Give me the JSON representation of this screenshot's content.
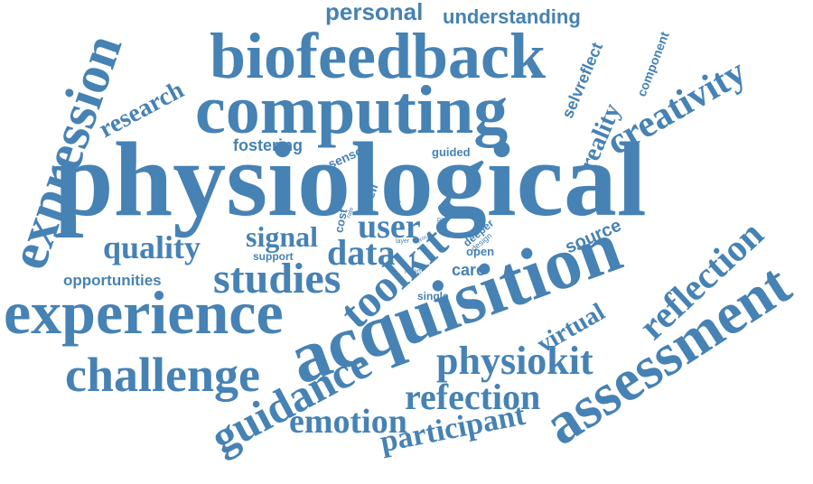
{
  "colors": {
    "background": "#ffffff",
    "word": "#4682b4"
  },
  "words": {
    "physiological": "physiological",
    "biofeedback": "biofeedback",
    "computing": "computing",
    "expression": "expression",
    "experience": "experience",
    "acquisition": "acquisition",
    "assessment": "assessment",
    "challenge": "challenge",
    "guidance": "guidance",
    "toolkit": "toolkit",
    "studies": "studies",
    "creativity": "creativity",
    "reflection": "reflection",
    "physiokit": "physiokit",
    "refection": "refection",
    "emotion": "emotion",
    "participant": "participant",
    "quality": "quality",
    "signal": "signal",
    "data": "data",
    "user": "user",
    "personal": "personal",
    "understanding": "understanding",
    "research": "research",
    "fostering": "fostering",
    "selvreflect": "selvreflect",
    "component": "component",
    "reality": "reality",
    "virtual": "virtual",
    "source": "source",
    "opportunities": "opportunities",
    "sensor": "sensor",
    "guided": "guided",
    "self": "self",
    "cost": "cost",
    "rate": "rate",
    "study": "study",
    "layer": "layer",
    "proc": "proc",
    "past": "past",
    "deeper": "deeper",
    "design": "design",
    "open": "open",
    "care": "care",
    "support": "support",
    "heart": "heart",
    "single": "single"
  }
}
